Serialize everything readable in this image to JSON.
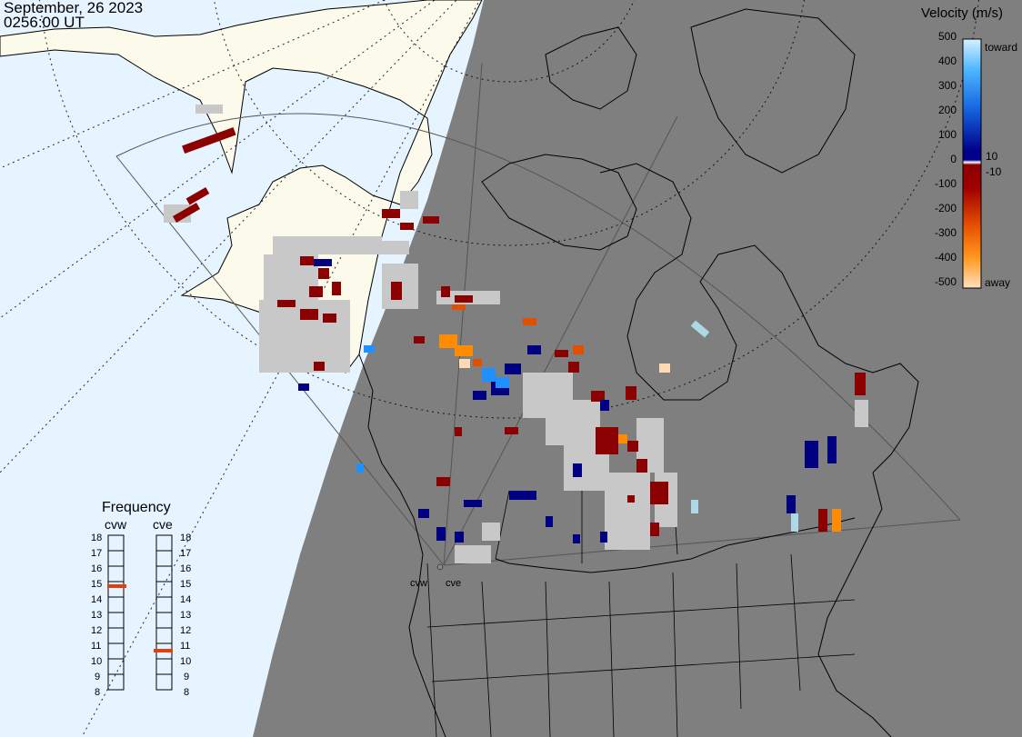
{
  "header": {
    "date": "September, 26 2023",
    "time": "0256:00 UT"
  },
  "colorbar": {
    "title": "Velocity (m/s)",
    "ticks": [
      "500",
      "400",
      "300",
      "200",
      "100",
      "0",
      "-100",
      "-200",
      "-300",
      "-400",
      "-500"
    ],
    "inner_labels": [
      "10",
      "-10"
    ],
    "toward_label": "toward",
    "away_label": "away"
  },
  "frequency": {
    "title": "Frequency",
    "radars": [
      {
        "name": "cvw",
        "value_mhz": 15
      },
      {
        "name": "cve",
        "value_mhz": 11
      }
    ],
    "scale": [
      "18",
      "17",
      "16",
      "15",
      "14",
      "13",
      "12",
      "11",
      "10",
      "9",
      "8"
    ]
  },
  "sites": [
    "cvw",
    "cve"
  ],
  "colors": {
    "ocean": "#e6f4ff",
    "land_day": "#fbfaeb",
    "night": "#7f7f7f",
    "ground_scatter": "#c8c8c8",
    "indicator": "#e04010"
  }
}
